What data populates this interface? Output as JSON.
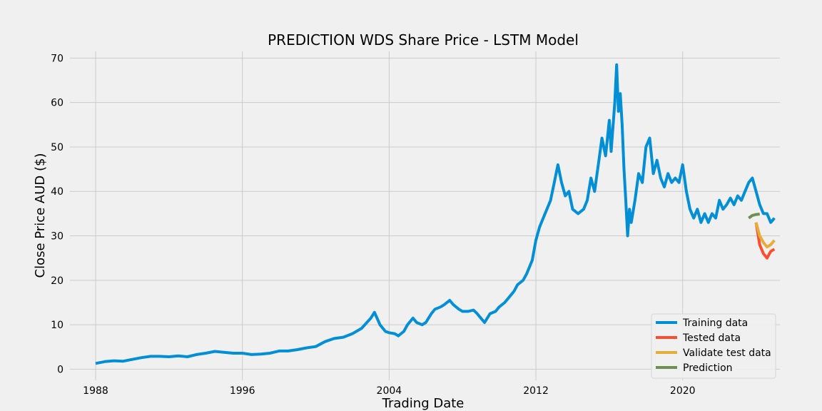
{
  "chart_data": {
    "type": "line",
    "title": "PREDICTION WDS Share Price - LSTM Model",
    "xlabel": "Trading Date",
    "ylabel": "Close Price AUD ($)",
    "xlim": [
      1986.6,
      2025.3
    ],
    "ylim": [
      -2.5,
      71.5
    ],
    "x_ticks": [
      1988,
      1996,
      2004,
      2012,
      2020
    ],
    "y_ticks": [
      0,
      10,
      20,
      30,
      40,
      50,
      60,
      70
    ],
    "grid": true,
    "legend_position": "lower-right",
    "background": "#f0f0f0",
    "series": [
      {
        "name": "Training data",
        "color": "#008fd5",
        "points": [
          [
            1988.0,
            1.3
          ],
          [
            1988.5,
            1.7
          ],
          [
            1989.0,
            1.9
          ],
          [
            1989.5,
            1.8
          ],
          [
            1990.0,
            2.2
          ],
          [
            1990.5,
            2.6
          ],
          [
            1991.0,
            2.9
          ],
          [
            1991.5,
            2.9
          ],
          [
            1992.0,
            2.8
          ],
          [
            1992.5,
            3.0
          ],
          [
            1993.0,
            2.8
          ],
          [
            1993.5,
            3.3
          ],
          [
            1994.0,
            3.6
          ],
          [
            1994.5,
            4.0
          ],
          [
            1995.0,
            3.8
          ],
          [
            1995.5,
            3.6
          ],
          [
            1996.0,
            3.6
          ],
          [
            1996.5,
            3.3
          ],
          [
            1997.0,
            3.4
          ],
          [
            1997.5,
            3.6
          ],
          [
            1998.0,
            4.1
          ],
          [
            1998.5,
            4.1
          ],
          [
            1999.0,
            4.4
          ],
          [
            1999.5,
            4.8
          ],
          [
            2000.0,
            5.1
          ],
          [
            2000.5,
            6.2
          ],
          [
            2001.0,
            6.9
          ],
          [
            2001.5,
            7.2
          ],
          [
            2002.0,
            8.0
          ],
          [
            2002.5,
            9.2
          ],
          [
            2003.0,
            11.5
          ],
          [
            2003.2,
            12.8
          ],
          [
            2003.5,
            10.0
          ],
          [
            2003.8,
            8.5
          ],
          [
            2004.0,
            8.2
          ],
          [
            2004.3,
            8.0
          ],
          [
            2004.5,
            7.5
          ],
          [
            2004.8,
            8.5
          ],
          [
            2005.0,
            10.0
          ],
          [
            2005.3,
            11.5
          ],
          [
            2005.5,
            10.5
          ],
          [
            2005.8,
            10.0
          ],
          [
            2006.0,
            10.5
          ],
          [
            2006.3,
            12.5
          ],
          [
            2006.5,
            13.5
          ],
          [
            2006.8,
            14.0
          ],
          [
            2007.0,
            14.5
          ],
          [
            2007.3,
            15.5
          ],
          [
            2007.5,
            14.5
          ],
          [
            2007.8,
            13.5
          ],
          [
            2008.0,
            13.0
          ],
          [
            2008.3,
            13.0
          ],
          [
            2008.6,
            13.3
          ],
          [
            2008.8,
            12.5
          ],
          [
            2009.0,
            11.5
          ],
          [
            2009.2,
            10.5
          ],
          [
            2009.5,
            12.5
          ],
          [
            2009.8,
            13.0
          ],
          [
            2010.0,
            14.0
          ],
          [
            2010.3,
            15.0
          ],
          [
            2010.5,
            16.0
          ],
          [
            2010.8,
            17.5
          ],
          [
            2011.0,
            19.0
          ],
          [
            2011.3,
            20.0
          ],
          [
            2011.5,
            21.5
          ],
          [
            2011.8,
            24.5
          ],
          [
            2012.0,
            29.0
          ],
          [
            2012.2,
            32.0
          ],
          [
            2012.5,
            35.0
          ],
          [
            2012.8,
            38.0
          ],
          [
            2013.0,
            42.0
          ],
          [
            2013.2,
            46.0
          ],
          [
            2013.4,
            42.0
          ],
          [
            2013.6,
            39.0
          ],
          [
            2013.8,
            40.0
          ],
          [
            2014.0,
            36.0
          ],
          [
            2014.3,
            35.0
          ],
          [
            2014.6,
            36.0
          ],
          [
            2014.8,
            38.0
          ],
          [
            2015.0,
            43.0
          ],
          [
            2015.2,
            40.0
          ],
          [
            2015.4,
            46.0
          ],
          [
            2015.6,
            52.0
          ],
          [
            2015.8,
            48.0
          ],
          [
            2016.0,
            56.0
          ],
          [
            2016.1,
            49.0
          ],
          [
            2016.3,
            60.0
          ],
          [
            2016.4,
            68.5
          ],
          [
            2016.5,
            58.0
          ],
          [
            2016.6,
            62.0
          ],
          [
            2016.7,
            55.0
          ],
          [
            2016.8,
            45.0
          ],
          [
            2016.9,
            38.0
          ],
          [
            2017.0,
            30.0
          ],
          [
            2017.1,
            36.0
          ],
          [
            2017.2,
            33.0
          ],
          [
            2017.4,
            38.0
          ],
          [
            2017.6,
            44.0
          ],
          [
            2017.8,
            42.0
          ],
          [
            2018.0,
            50.0
          ],
          [
            2018.2,
            52.0
          ],
          [
            2018.4,
            44.0
          ],
          [
            2018.6,
            47.0
          ],
          [
            2018.8,
            43.0
          ],
          [
            2019.0,
            41.0
          ],
          [
            2019.2,
            44.0
          ],
          [
            2019.4,
            42.0
          ],
          [
            2019.6,
            43.0
          ],
          [
            2019.8,
            42.0
          ],
          [
            2020.0,
            46.0
          ],
          [
            2020.2,
            40.0
          ],
          [
            2020.4,
            36.0
          ],
          [
            2020.6,
            34.0
          ],
          [
            2020.8,
            36.0
          ],
          [
            2021.0,
            33.0
          ],
          [
            2021.2,
            35.0
          ],
          [
            2021.4,
            33.0
          ],
          [
            2021.6,
            35.0
          ],
          [
            2021.8,
            34.0
          ],
          [
            2022.0,
            38.0
          ],
          [
            2022.2,
            36.0
          ],
          [
            2022.4,
            37.0
          ],
          [
            2022.6,
            38.5
          ],
          [
            2022.8,
            37.0
          ],
          [
            2023.0,
            39.0
          ],
          [
            2023.2,
            38.0
          ],
          [
            2023.4,
            40.0
          ],
          [
            2023.6,
            42.0
          ],
          [
            2023.8,
            43.0
          ],
          [
            2024.0,
            40.0
          ],
          [
            2024.2,
            37.0
          ],
          [
            2024.4,
            35.0
          ],
          [
            2024.6,
            35.0
          ],
          [
            2024.8,
            33.0
          ],
          [
            2025.0,
            34.0
          ]
        ]
      },
      {
        "name": "Tested data",
        "color": "#fc4f30",
        "points": [
          [
            2024.0,
            33.0
          ],
          [
            2024.2,
            28.0
          ],
          [
            2024.4,
            26.0
          ],
          [
            2024.6,
            25.0
          ],
          [
            2024.8,
            26.5
          ],
          [
            2025.0,
            27.0
          ]
        ]
      },
      {
        "name": "Validate test data",
        "color": "#e5ae38",
        "points": [
          [
            2024.0,
            33.0
          ],
          [
            2024.2,
            30.0
          ],
          [
            2024.4,
            28.5
          ],
          [
            2024.6,
            27.5
          ],
          [
            2024.8,
            28.0
          ],
          [
            2025.0,
            29.0
          ]
        ]
      },
      {
        "name": "Prediction",
        "color": "#6d904f",
        "points": [
          [
            2023.6,
            34.0
          ],
          [
            2023.8,
            34.6
          ],
          [
            2024.0,
            34.8
          ],
          [
            2024.2,
            34.9
          ]
        ]
      }
    ]
  }
}
